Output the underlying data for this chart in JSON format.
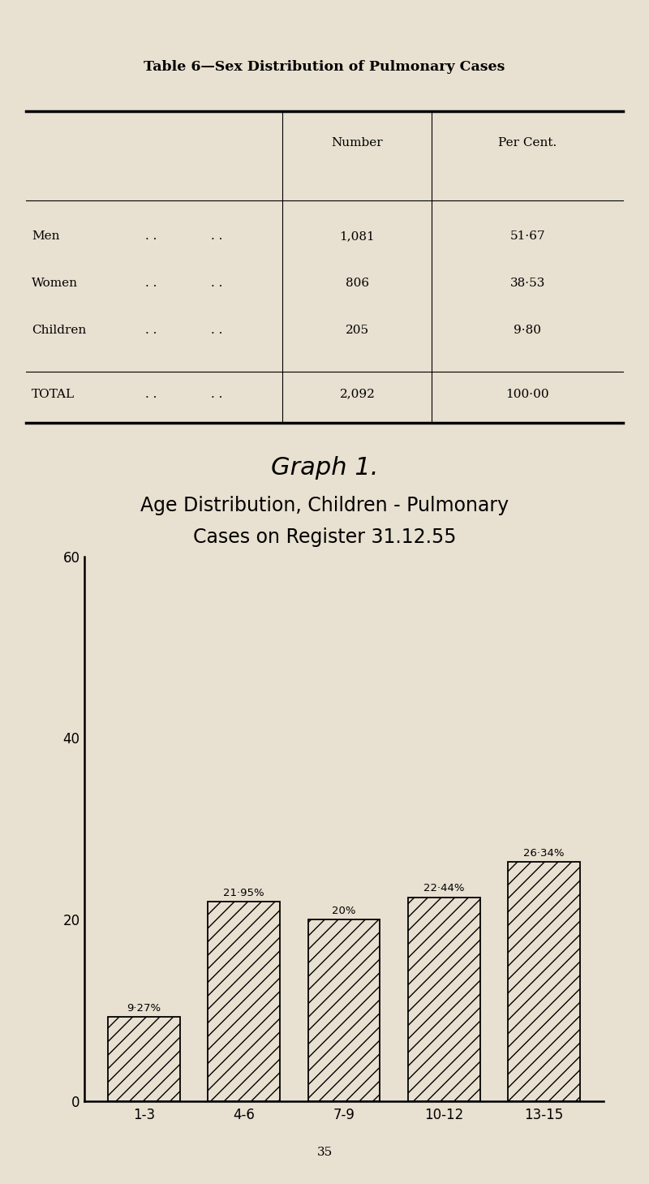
{
  "bg_color": "#e8e0d0",
  "table_title": "Table 6—Sex Distribution of Pulmonary Cases",
  "col_number": "Number",
  "col_percent": "Per Cent.",
  "rows": [
    {
      "label": "Men",
      "dots1": ". .",
      "dots2": ". .",
      "number": "1,081",
      "percent": "51·67"
    },
    {
      "label": "Women",
      "dots1": ". .",
      "dots2": ". .",
      "number": "806",
      "percent": "38·53"
    },
    {
      "label": "Children",
      "dots1": ". .",
      "dots2": ". .",
      "number": "205",
      "percent": "9·80"
    }
  ],
  "total_label": "Total",
  "total_dots1": ". .",
  "total_dots2": ". .",
  "total_number": "2,092",
  "total_percent": "100·00",
  "graph_title_line1": "Graph 1.",
  "graph_title_line2": "Age Distribution, Children - Pulmonary",
  "graph_title_line3": "Cases on Register 31.12.55",
  "categories": [
    "1-3",
    "4-6",
    "7-9",
    "10-12",
    "13-15"
  ],
  "values": [
    9.27,
    21.95,
    20.0,
    22.44,
    26.34
  ],
  "bar_labels": [
    "9·27%",
    "21·95%",
    "20%",
    "22·44%",
    "26·34%"
  ],
  "ylim": [
    0,
    60
  ],
  "yticks": [
    0,
    20,
    40,
    60
  ],
  "page_number": "35"
}
